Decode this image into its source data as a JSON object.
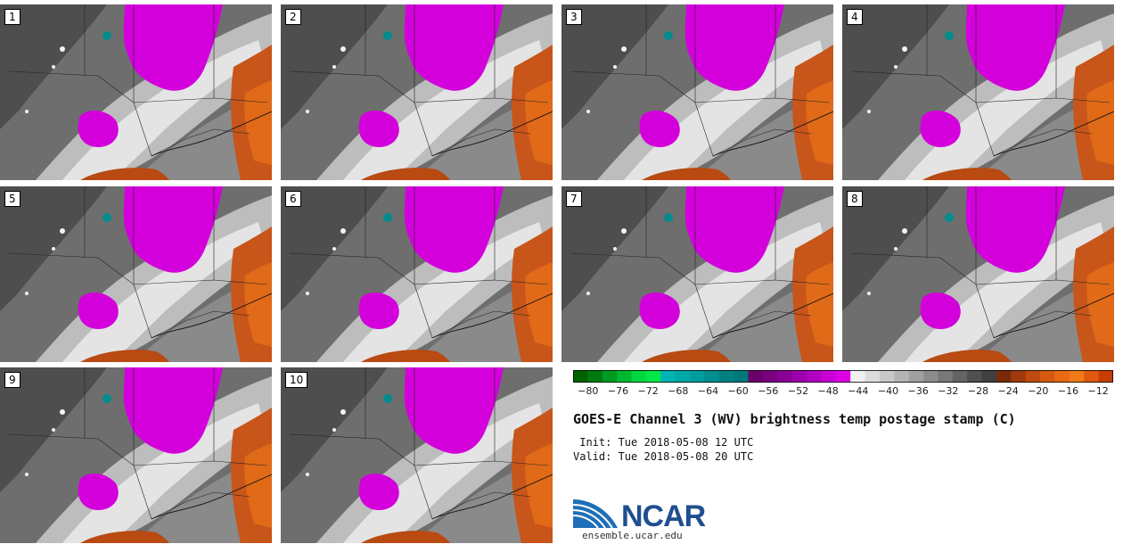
{
  "panels": [
    {
      "label": "1"
    },
    {
      "label": "2"
    },
    {
      "label": "3"
    },
    {
      "label": "4"
    },
    {
      "label": "5"
    },
    {
      "label": "6"
    },
    {
      "label": "7"
    },
    {
      "label": "8"
    },
    {
      "label": "9"
    },
    {
      "label": "10"
    }
  ],
  "colorbar": {
    "ticks": [
      "−80",
      "−76",
      "−72",
      "−68",
      "−64",
      "−60",
      "−56",
      "−52",
      "−48",
      "−44",
      "−40",
      "−36",
      "−32",
      "−28",
      "−24",
      "−20",
      "−16",
      "−12"
    ],
    "min": -82,
    "max": -10,
    "colors": [
      "#006400",
      "#007a10",
      "#009a20",
      "#00b830",
      "#00d840",
      "#00e848",
      "#00b4b4",
      "#00a8a8",
      "#009c9c",
      "#008e8e",
      "#008080",
      "#007878",
      "#6a006a",
      "#7a0080",
      "#8a0096",
      "#9c00ac",
      "#b000c0",
      "#c800d4",
      "#de00e4",
      "#f0f0f0",
      "#dcdcdc",
      "#c8c8c8",
      "#b4b4b4",
      "#a0a0a0",
      "#8c8c8c",
      "#787878",
      "#646464",
      "#505050",
      "#404040",
      "#7a2a08",
      "#a03a0c",
      "#c04a10",
      "#d85a12",
      "#e86a14",
      "#f07a18",
      "#e25810",
      "#c83c08"
    ]
  },
  "title": "GOES-E Channel 3 (WV) brightness temp postage stamp (C)",
  "init": " Init: Tue 2018-05-08 12 UTC",
  "valid": "Valid: Tue 2018-05-08 20 UTC",
  "logo": {
    "text": "NCAR",
    "url": "ensemble.ucar.edu"
  }
}
